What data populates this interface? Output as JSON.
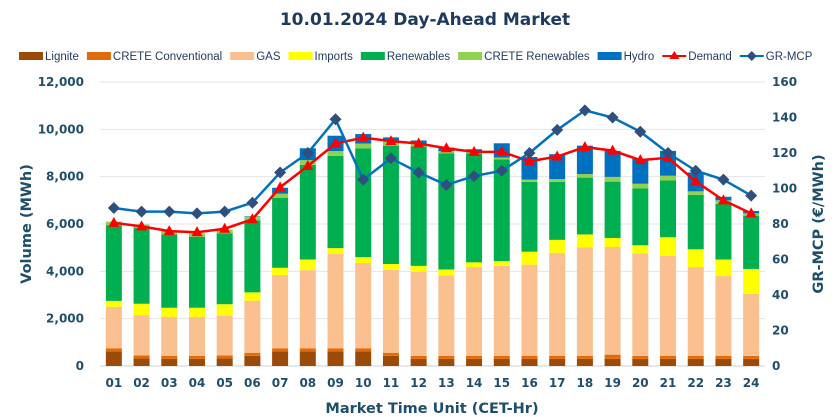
{
  "chart_data": {
    "type": "bar",
    "stacked": true,
    "title": "10.01.2024  Day-Ahead Market",
    "xlabel": "Market Time Unit (CET-Hr)",
    "ylabel": "Volume (MWh)",
    "y2label": "GR-MCP (€/MWh)",
    "ylim": [
      0,
      12000
    ],
    "y2lim": [
      0,
      160
    ],
    "yticks": [
      "0",
      "2,000",
      "4,000",
      "6,000",
      "8,000",
      "10,000",
      "12,000"
    ],
    "y2ticks": [
      "0",
      "20",
      "40",
      "60",
      "80",
      "100",
      "120",
      "140",
      "160"
    ],
    "grid": true,
    "legend_position": "top",
    "categories": [
      "01",
      "02",
      "03",
      "04",
      "05",
      "06",
      "07",
      "08",
      "09",
      "10",
      "11",
      "12",
      "13",
      "14",
      "15",
      "16",
      "17",
      "18",
      "19",
      "20",
      "21",
      "22",
      "23",
      "24"
    ],
    "series": [
      {
        "name": "Lignite",
        "kind": "bar",
        "color": "#9c4a08",
        "values": [
          620,
          320,
          300,
          300,
          320,
          430,
          620,
          620,
          620,
          620,
          430,
          300,
          300,
          300,
          300,
          300,
          300,
          300,
          300,
          300,
          300,
          300,
          300,
          300
        ]
      },
      {
        "name": "CRETE Conventional",
        "kind": "bar",
        "color": "#e36c0a",
        "values": [
          130,
          130,
          130,
          130,
          130,
          130,
          130,
          130,
          130,
          130,
          130,
          130,
          130,
          130,
          130,
          130,
          130,
          130,
          180,
          130,
          130,
          130,
          130,
          130
        ]
      },
      {
        "name": "GAS",
        "kind": "bar",
        "color": "#fac090",
        "values": [
          1750,
          1700,
          1650,
          1650,
          1680,
          2200,
          3100,
          3300,
          3980,
          3600,
          3500,
          3550,
          3400,
          3750,
          3800,
          3850,
          4350,
          4580,
          4550,
          4320,
          4230,
          3750,
          3370,
          2620
        ]
      },
      {
        "name": "Imports",
        "kind": "bar",
        "color": "#ffff00",
        "values": [
          250,
          480,
          380,
          380,
          480,
          350,
          300,
          450,
          250,
          250,
          250,
          250,
          250,
          200,
          200,
          550,
          550,
          550,
          380,
          350,
          780,
          750,
          700,
          1050
        ]
      },
      {
        "name": "Renewables",
        "kind": "bar",
        "color": "#00b050",
        "values": [
          3200,
          3200,
          3100,
          3000,
          3000,
          3050,
          2950,
          4000,
          3900,
          4600,
          5000,
          5050,
          4900,
          4600,
          4300,
          2950,
          2450,
          2400,
          2380,
          2400,
          2400,
          2300,
          2350,
          2250
        ]
      },
      {
        "name": "CRETE Renewables",
        "kind": "bar",
        "color": "#92d050",
        "values": [
          150,
          150,
          150,
          150,
          150,
          150,
          180,
          200,
          200,
          200,
          200,
          100,
          100,
          80,
          80,
          100,
          120,
          150,
          200,
          200,
          200,
          150,
          150,
          100
        ]
      },
      {
        "name": "Hydro",
        "kind": "bar",
        "color": "#0070c0",
        "values": [
          0,
          0,
          0,
          0,
          0,
          20,
          250,
          500,
          650,
          400,
          150,
          150,
          150,
          100,
          600,
          950,
          1050,
          1200,
          1100,
          1050,
          1050,
          800,
          150,
          100
        ]
      },
      {
        "name": "Demand",
        "kind": "line",
        "color": "#ff0000",
        "marker": "triangle",
        "values": [
          6050,
          5900,
          5700,
          5650,
          5800,
          6200,
          7550,
          8450,
          9400,
          9650,
          9500,
          9400,
          9200,
          9050,
          9050,
          8650,
          8850,
          9250,
          9100,
          8700,
          8800,
          7800,
          7000,
          6450
        ]
      },
      {
        "name": "GR-MCP",
        "kind": "line",
        "axis": "right",
        "color": "#0070c0",
        "marker": "diamond",
        "marker_color": "#2f4f7f",
        "values": [
          89,
          87,
          87,
          86,
          87,
          92,
          109,
          120,
          139,
          105,
          117,
          109,
          102,
          107,
          110,
          120,
          133,
          144,
          140,
          132,
          120,
          110,
          105,
          96
        ]
      }
    ]
  }
}
